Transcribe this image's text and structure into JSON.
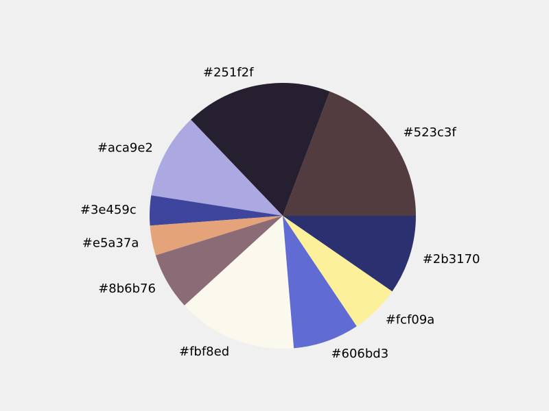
{
  "chart_data": {
    "type": "pie",
    "title": "",
    "start_angle_deg": 0,
    "direction": "counterclockwise",
    "slices": [
      {
        "label": "#523c3f",
        "value": 19.6,
        "color": "#523c3f"
      },
      {
        "label": "#251f2f",
        "value": 18.2,
        "color": "#251f2f"
      },
      {
        "label": "#aca9e2",
        "value": 10.6,
        "color": "#aca9e2"
      },
      {
        "label": "#3e459c",
        "value": 3.7,
        "color": "#3e459c"
      },
      {
        "label": "#e5a37a",
        "value": 3.7,
        "color": "#e5a37a"
      },
      {
        "label": "#8b6b76",
        "value": 7.1,
        "color": "#8b6b76"
      },
      {
        "label": "#fbf8ed",
        "value": 14.8,
        "color": "#fbf8ed"
      },
      {
        "label": "#606bd3",
        "value": 8.2,
        "color": "#606bd3"
      },
      {
        "label": "#fcf09a",
        "value": 6.1,
        "color": "#fcf09a"
      },
      {
        "label": "#2b3170",
        "value": 9.8,
        "color": "#2b3170"
      }
    ]
  },
  "background_color": "#f0f0f0"
}
